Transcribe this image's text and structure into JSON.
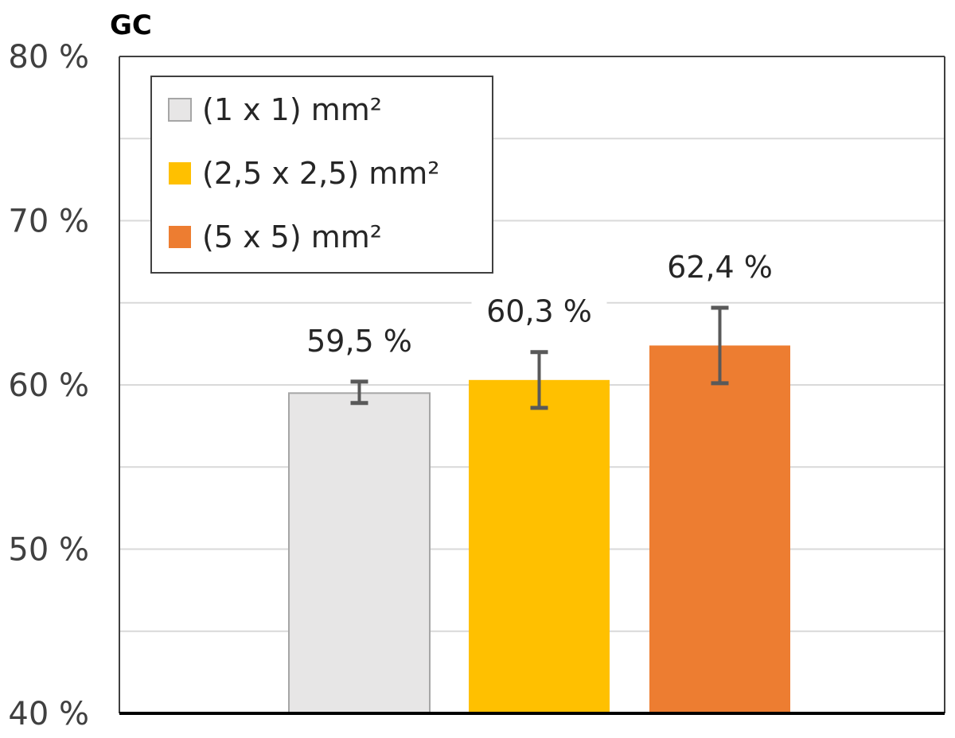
{
  "chart_data": {
    "type": "bar",
    "title": "GC",
    "xlabel": "",
    "ylabel": "",
    "ylim": [
      40,
      80
    ],
    "y_ticks": [
      "40 %",
      "50 %",
      "60 %",
      "70 %",
      "80 %"
    ],
    "y_minor_gridlines": [
      45,
      55,
      65,
      75
    ],
    "grid": true,
    "legend_position": "top-left",
    "categories": [
      "(1 x 1) mm²",
      "(2,5 x 2,5) mm²",
      "(5 x 5) mm²"
    ],
    "series": [
      {
        "name": "(1 x 1) mm²",
        "value": 59.5,
        "error_low": 58.9,
        "error_high": 60.2,
        "label": "59,5 %",
        "color": "#E7E6E6"
      },
      {
        "name": "(2,5 x 2,5) mm²",
        "value": 60.3,
        "error_low": 58.6,
        "error_high": 62.0,
        "label": "60,3 %",
        "color": "#FFC000"
      },
      {
        "name": "(5 x 5) mm²",
        "value": 62.4,
        "error_low": 60.1,
        "error_high": 64.7,
        "label": "62,4 %",
        "color": "#ED7D31"
      }
    ],
    "colors": {
      "grid": "#d9d9d9",
      "axis": "#000000",
      "error_bar": "#595959",
      "legend_border": "#404040"
    }
  }
}
